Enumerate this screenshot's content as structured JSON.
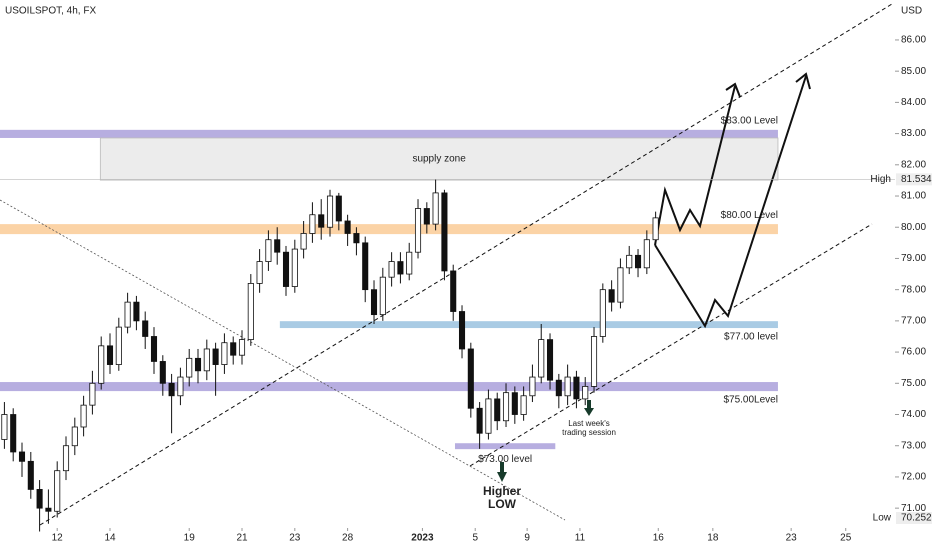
{
  "chart_data": {
    "type": "candlestick",
    "title": "USOILSPOT, 4h, FX",
    "y_axis_label": "USD",
    "ylim": [
      70.3,
      87.28
    ],
    "xlim": [
      -0.5,
      101.2
    ],
    "yticks": [
      {
        "value": 86,
        "label": "86.00"
      },
      {
        "value": 85,
        "label": "85.00"
      },
      {
        "value": 84,
        "label": "84.00"
      },
      {
        "value": 83,
        "label": "83.00"
      },
      {
        "value": 82,
        "label": "82.00"
      },
      {
        "value": 81,
        "label": "81.00"
      },
      {
        "value": 80,
        "label": "80.00"
      },
      {
        "value": 79,
        "label": "79.00"
      },
      {
        "value": 78,
        "label": "78.00"
      },
      {
        "value": 77,
        "label": "77.00"
      },
      {
        "value": 76,
        "label": "76.00"
      },
      {
        "value": 75,
        "label": "75.00"
      },
      {
        "value": 74,
        "label": "74.00"
      },
      {
        "value": 73,
        "label": "73.00"
      },
      {
        "value": 72,
        "label": "72.00"
      },
      {
        "value": 71,
        "label": "71.00"
      }
    ],
    "xticks": [
      {
        "value": 6,
        "label": "12"
      },
      {
        "value": 12,
        "label": "14"
      },
      {
        "value": 21,
        "label": "19"
      },
      {
        "value": 27,
        "label": "21"
      },
      {
        "value": 33,
        "label": "23"
      },
      {
        "value": 39,
        "label": "28"
      },
      {
        "value": 47.5,
        "label": "2023"
      },
      {
        "value": 53.5,
        "label": "5"
      },
      {
        "value": 59.4,
        "label": "9"
      },
      {
        "value": 65.4,
        "label": "11"
      },
      {
        "value": 74.3,
        "label": "16"
      },
      {
        "value": 80.5,
        "label": "18"
      },
      {
        "value": 89.4,
        "label": "23"
      },
      {
        "value": 95.6,
        "label": "25"
      }
    ],
    "up_color": "#ffffff",
    "down_color": "#111111",
    "open": [
      73.2,
      74.0,
      72.8,
      72.5,
      71.6,
      71.0,
      70.9,
      72.2,
      73.0,
      73.6,
      74.3,
      75.0,
      76.2,
      75.6,
      76.8,
      77.6,
      77.0,
      76.5,
      75.7,
      75.0,
      74.6,
      75.2,
      75.8,
      75.4,
      76.1,
      75.6,
      76.3,
      75.9,
      76.4,
      78.2,
      78.9,
      79.6,
      79.2,
      78.1,
      79.3,
      79.8,
      80.4,
      80.0,
      81.0,
      80.2,
      79.8,
      79.5,
      78.0,
      77.2,
      78.4,
      78.9,
      78.5,
      79.2,
      80.6,
      80.1,
      81.1,
      78.6,
      77.3,
      76.1,
      74.2,
      73.4,
      74.5,
      73.8,
      74.7,
      74.0,
      74.6,
      75.2,
      76.4,
      75.1,
      74.6,
      75.2,
      74.5,
      74.9,
      76.5,
      78.0,
      77.6,
      78.7,
      79.1,
      78.7,
      79.6
    ],
    "high": [
      74.4,
      74.2,
      73.1,
      72.8,
      71.9,
      71.6,
      72.5,
      73.3,
      73.9,
      74.6,
      75.4,
      76.5,
      76.6,
      77.1,
      77.9,
      77.8,
      77.3,
      76.8,
      75.9,
      75.3,
      75.5,
      76.1,
      76.1,
      76.4,
      76.3,
      76.6,
      76.5,
      76.7,
      78.5,
      79.3,
      79.9,
      80.0,
      79.4,
      79.6,
      80.2,
      80.8,
      80.9,
      81.2,
      81.1,
      80.4,
      80.0,
      79.7,
      78.3,
      78.7,
      79.2,
      79.2,
      79.5,
      80.9,
      80.8,
      81.534,
      81.2,
      78.8,
      77.5,
      76.3,
      74.4,
      74.8,
      74.7,
      75.0,
      74.9,
      74.9,
      75.6,
      76.9,
      76.6,
      75.3,
      75.6,
      75.4,
      75.2,
      76.8,
      78.2,
      78.3,
      79.0,
      79.4,
      79.3,
      79.9,
      80.5
    ],
    "low": [
      72.9,
      72.5,
      72.0,
      71.3,
      70.252,
      70.5,
      70.7,
      71.9,
      72.7,
      73.3,
      74.0,
      74.8,
      75.3,
      75.4,
      76.6,
      76.7,
      76.1,
      75.3,
      74.6,
      73.4,
      74.3,
      74.9,
      75.0,
      75.1,
      74.6,
      75.3,
      75.6,
      75.6,
      76.2,
      77.9,
      78.6,
      78.8,
      77.8,
      77.9,
      79.0,
      79.5,
      79.6,
      79.7,
      79.9,
      79.4,
      79.1,
      77.6,
      76.9,
      77.0,
      78.1,
      78.2,
      78.3,
      79.0,
      79.8,
      79.9,
      78.3,
      77.0,
      75.8,
      73.9,
      72.9,
      73.2,
      73.5,
      73.6,
      73.7,
      73.8,
      74.4,
      75.0,
      74.8,
      74.2,
      74.3,
      74.2,
      74.3,
      74.7,
      76.3,
      77.3,
      77.4,
      78.5,
      78.4,
      78.5,
      79.4
    ],
    "close": [
      74.0,
      72.8,
      72.5,
      71.6,
      71.0,
      70.9,
      72.2,
      73.0,
      73.6,
      74.3,
      75.0,
      76.2,
      75.6,
      76.8,
      77.6,
      77.0,
      76.5,
      75.7,
      75.0,
      74.6,
      75.2,
      75.8,
      75.4,
      76.1,
      75.6,
      76.3,
      75.9,
      76.4,
      78.2,
      78.9,
      79.6,
      79.2,
      78.1,
      79.3,
      79.8,
      80.4,
      80.0,
      81.0,
      80.2,
      79.8,
      79.5,
      78.0,
      77.2,
      78.4,
      78.9,
      78.5,
      79.2,
      80.6,
      80.1,
      81.1,
      78.6,
      77.3,
      76.1,
      74.2,
      73.4,
      74.5,
      73.8,
      74.7,
      74.0,
      74.6,
      75.2,
      76.4,
      75.1,
      74.6,
      75.2,
      74.5,
      74.9,
      76.5,
      78.0,
      77.6,
      78.7,
      79.1,
      78.7,
      79.6,
      80.3
    ],
    "high_marker": {
      "label": "High",
      "value": 81.534
    },
    "low_marker": {
      "label": "Low",
      "value": 70.252
    },
    "zones": [
      {
        "label": "$83.00 Level",
        "top": 83.12,
        "bottom": 82.86,
        "start": -0.5,
        "end": 87.9,
        "color": "#b7aee0",
        "text_color": "#5b5f9a"
      },
      {
        "label": "supply zone",
        "top": 82.86,
        "bottom": 81.51,
        "start": 10.9,
        "end": 87.9,
        "color": "#ececec",
        "text_color": "#333333"
      },
      {
        "label": "$80.00 Level",
        "top": 80.1,
        "bottom": 79.78,
        "start": -0.5,
        "end": 87.9,
        "color": "#fbd3a6",
        "text_color": "#b8843e"
      },
      {
        "label": "$77.00 level",
        "top": 76.99,
        "bottom": 76.77,
        "start": 31.3,
        "end": 87.9,
        "color": "#a9cbe4",
        "text_color": "#5b7a99"
      },
      {
        "label": "$75.00Level",
        "top": 75.04,
        "bottom": 74.75,
        "start": -0.5,
        "end": 87.9,
        "color": "#b7aee0",
        "text_color": "#333366"
      },
      {
        "label": "$73.00 level",
        "top": 73.08,
        "bottom": 72.89,
        "start": 51.2,
        "end": 62.6,
        "color": "#b7aee0",
        "text_color": "#333366"
      }
    ],
    "annotations": {
      "higher_low_1": "Higher",
      "higher_low_2": "LOW",
      "session_1": "Last week's",
      "session_2": "trading session"
    }
  }
}
